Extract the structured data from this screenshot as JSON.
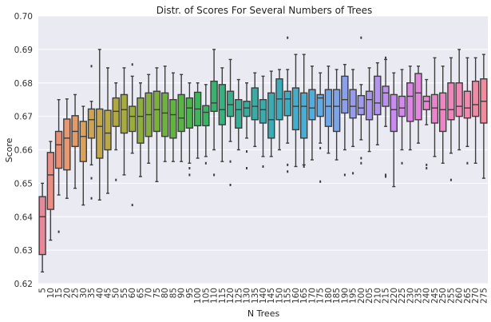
{
  "chart_data": {
    "type": "box",
    "title": "Distr. of Scores For Several Numbers of Trees",
    "xlabel": "N Trees",
    "ylabel": "Score",
    "ylim": [
      0.62,
      0.7
    ],
    "yticks": [
      "0.62",
      "0.63",
      "0.64",
      "0.65",
      "0.66",
      "0.67",
      "0.68",
      "0.69",
      "0.70"
    ],
    "grid": true,
    "categories": [
      "5",
      "10",
      "15",
      "20",
      "25",
      "30",
      "35",
      "40",
      "45",
      "50",
      "55",
      "60",
      "65",
      "70",
      "75",
      "80",
      "85",
      "90",
      "95",
      "100",
      "105",
      "110",
      "115",
      "120",
      "125",
      "130",
      "135",
      "140",
      "145",
      "150",
      "155",
      "160",
      "165",
      "170",
      "175",
      "180",
      "185",
      "190",
      "195",
      "200",
      "205",
      "210",
      "215",
      "220",
      "225",
      "230",
      "235",
      "240",
      "245",
      "250",
      "255",
      "260",
      "265",
      "270",
      "275"
    ],
    "colors": [
      "#e8899b",
      "#e98e84",
      "#e88f74",
      "#e89870",
      "#e39a66",
      "#d9a159",
      "#cfa450",
      "#c4a848",
      "#b8a846",
      "#b0a943",
      "#a6ac40",
      "#99ad3d",
      "#8fae3e",
      "#85b03e",
      "#7bb03d",
      "#6fb23f",
      "#62b43f",
      "#56b543",
      "#4ab64b",
      "#3eb55a",
      "#3ab365",
      "#39b270",
      "#37b17d",
      "#37b08a",
      "#38af94",
      "#39ad9c",
      "#3aaca4",
      "#3bacab",
      "#3bacb2",
      "#3cacba",
      "#3eadc2",
      "#42aecb",
      "#48aed6",
      "#52addc",
      "#5fabe3",
      "#6ea7e7",
      "#7ea4e8",
      "#8aa0eb",
      "#959cee",
      "#a099ef",
      "#aa96ef",
      "#b493ef",
      "#bd8fef",
      "#c88cee",
      "#d38aea",
      "#dc87e4",
      "#e486dd",
      "#e985d5",
      "#ec84cd",
      "#ee84c4",
      "#ef86bc",
      "#ef88b4",
      "#ef8aac",
      "#ef8ba4",
      "#ef8d9c"
    ],
    "boxes": [
      {
        "q1": 0.6287,
        "median": 0.64,
        "q3": 0.646,
        "whislo": 0.6235,
        "whishi": 0.65,
        "fliers": []
      },
      {
        "q1": 0.6422,
        "median": 0.6525,
        "q3": 0.6592,
        "whislo": 0.633,
        "whishi": 0.6625,
        "fliers": []
      },
      {
        "q1": 0.6545,
        "median": 0.6615,
        "q3": 0.6655,
        "whislo": 0.6465,
        "whishi": 0.675,
        "fliers": [
          0.6355
        ]
      },
      {
        "q1": 0.654,
        "median": 0.6635,
        "q3": 0.6692,
        "whislo": 0.6455,
        "whishi": 0.6752,
        "fliers": []
      },
      {
        "q1": 0.661,
        "median": 0.6655,
        "q3": 0.6702,
        "whislo": 0.6485,
        "whishi": 0.6765,
        "fliers": []
      },
      {
        "q1": 0.6565,
        "median": 0.664,
        "q3": 0.6685,
        "whislo": 0.6435,
        "whishi": 0.673,
        "fliers": []
      },
      {
        "q1": 0.6635,
        "median": 0.669,
        "q3": 0.6722,
        "whislo": 0.6555,
        "whishi": 0.6745,
        "fliers": [
          0.685,
          0.6515,
          0.6455
        ]
      },
      {
        "q1": 0.6575,
        "median": 0.667,
        "q3": 0.6722,
        "whislo": 0.645,
        "whishi": 0.69,
        "fliers": []
      },
      {
        "q1": 0.66,
        "median": 0.665,
        "q3": 0.6718,
        "whislo": 0.647,
        "whishi": 0.6845,
        "fliers": []
      },
      {
        "q1": 0.667,
        "median": 0.6715,
        "q3": 0.6755,
        "whislo": 0.66,
        "whishi": 0.68,
        "fliers": [
          0.651
        ]
      },
      {
        "q1": 0.665,
        "median": 0.672,
        "q3": 0.6765,
        "whislo": 0.6525,
        "whishi": 0.6845,
        "fliers": []
      },
      {
        "q1": 0.6655,
        "median": 0.67,
        "q3": 0.673,
        "whislo": 0.659,
        "whishi": 0.682,
        "fliers": [
          0.6855,
          0.6435
        ]
      },
      {
        "q1": 0.662,
        "median": 0.67,
        "q3": 0.6755,
        "whislo": 0.652,
        "whishi": 0.68,
        "fliers": []
      },
      {
        "q1": 0.664,
        "median": 0.6705,
        "q3": 0.677,
        "whislo": 0.656,
        "whishi": 0.6825,
        "fliers": []
      },
      {
        "q1": 0.6655,
        "median": 0.672,
        "q3": 0.6775,
        "whislo": 0.6505,
        "whishi": 0.6845,
        "fliers": []
      },
      {
        "q1": 0.664,
        "median": 0.671,
        "q3": 0.677,
        "whislo": 0.6565,
        "whishi": 0.685,
        "fliers": []
      },
      {
        "q1": 0.6635,
        "median": 0.6705,
        "q3": 0.675,
        "whislo": 0.6565,
        "whishi": 0.683,
        "fliers": []
      },
      {
        "q1": 0.6655,
        "median": 0.6695,
        "q3": 0.6765,
        "whislo": 0.6565,
        "whishi": 0.6825,
        "fliers": []
      },
      {
        "q1": 0.6665,
        "median": 0.6725,
        "q3": 0.6755,
        "whislo": 0.656,
        "whishi": 0.68,
        "fliers": [
          0.6545,
          0.6525
        ]
      },
      {
        "q1": 0.6672,
        "median": 0.6722,
        "q3": 0.6772,
        "whislo": 0.6575,
        "whishi": 0.68,
        "fliers": []
      },
      {
        "q1": 0.6672,
        "median": 0.6712,
        "q3": 0.6732,
        "whislo": 0.658,
        "whishi": 0.6795,
        "fliers": [
          0.656
        ]
      },
      {
        "q1": 0.6715,
        "median": 0.674,
        "q3": 0.6805,
        "whislo": 0.66,
        "whishi": 0.69,
        "fliers": [
          0.6525
        ]
      },
      {
        "q1": 0.6675,
        "median": 0.672,
        "q3": 0.6795,
        "whislo": 0.6565,
        "whishi": 0.6845,
        "fliers": []
      },
      {
        "q1": 0.67,
        "median": 0.6735,
        "q3": 0.6775,
        "whislo": 0.6625,
        "whishi": 0.687,
        "fliers": [
          0.6565,
          0.6495
        ]
      },
      {
        "q1": 0.6665,
        "median": 0.672,
        "q3": 0.675,
        "whislo": 0.66,
        "whishi": 0.681,
        "fliers": []
      },
      {
        "q1": 0.67,
        "median": 0.6725,
        "q3": 0.6745,
        "whislo": 0.6635,
        "whishi": 0.68,
        "fliers": [
          0.6595,
          0.6545
        ]
      },
      {
        "q1": 0.669,
        "median": 0.673,
        "q3": 0.6785,
        "whislo": 0.661,
        "whishi": 0.683,
        "fliers": []
      },
      {
        "q1": 0.668,
        "median": 0.672,
        "q3": 0.675,
        "whislo": 0.658,
        "whishi": 0.682,
        "fliers": [
          0.655
        ]
      },
      {
        "q1": 0.6635,
        "median": 0.669,
        "q3": 0.677,
        "whislo": 0.658,
        "whishi": 0.6835,
        "fliers": []
      },
      {
        "q1": 0.669,
        "median": 0.6752,
        "q3": 0.6812,
        "whislo": 0.66,
        "whishi": 0.684,
        "fliers": []
      },
      {
        "q1": 0.6702,
        "median": 0.6752,
        "q3": 0.6775,
        "whislo": 0.662,
        "whishi": 0.684,
        "fliers": [
          0.6935,
          0.6555,
          0.6535
        ]
      },
      {
        "q1": 0.666,
        "median": 0.673,
        "q3": 0.6785,
        "whislo": 0.655,
        "whishi": 0.6885,
        "fliers": []
      },
      {
        "q1": 0.6635,
        "median": 0.673,
        "q3": 0.677,
        "whislo": 0.6555,
        "whishi": 0.6885,
        "fliers": [
          0.655
        ]
      },
      {
        "q1": 0.669,
        "median": 0.6725,
        "q3": 0.678,
        "whislo": 0.657,
        "whishi": 0.685,
        "fliers": []
      },
      {
        "q1": 0.67,
        "median": 0.6755,
        "q3": 0.6765,
        "whislo": 0.662,
        "whishi": 0.683,
        "fliers": [
          0.6605,
          0.6505
        ]
      },
      {
        "q1": 0.667,
        "median": 0.673,
        "q3": 0.678,
        "whislo": 0.659,
        "whishi": 0.685,
        "fliers": []
      },
      {
        "q1": 0.6655,
        "median": 0.673,
        "q3": 0.678,
        "whislo": 0.657,
        "whishi": 0.684,
        "fliers": []
      },
      {
        "q1": 0.671,
        "median": 0.675,
        "q3": 0.682,
        "whislo": 0.66,
        "whishi": 0.6855,
        "fliers": [
          0.6525
        ]
      },
      {
        "q1": 0.6695,
        "median": 0.673,
        "q3": 0.678,
        "whislo": 0.661,
        "whishi": 0.684,
        "fliers": [
          0.653
        ]
      },
      {
        "q1": 0.6705,
        "median": 0.6725,
        "q3": 0.6762,
        "whislo": 0.663,
        "whishi": 0.6795,
        "fliers": [
          0.6935,
          0.6575,
          0.656
        ]
      },
      {
        "q1": 0.669,
        "median": 0.675,
        "q3": 0.6775,
        "whislo": 0.6595,
        "whishi": 0.6845,
        "fliers": []
      },
      {
        "q1": 0.6705,
        "median": 0.674,
        "q3": 0.682,
        "whislo": 0.6615,
        "whishi": 0.686,
        "fliers": []
      },
      {
        "q1": 0.673,
        "median": 0.677,
        "q3": 0.679,
        "whislo": 0.667,
        "whishi": 0.687,
        "fliers": [
          0.6875,
          0.6525,
          0.652
        ]
      },
      {
        "q1": 0.6655,
        "median": 0.672,
        "q3": 0.6765,
        "whislo": 0.649,
        "whishi": 0.683,
        "fliers": []
      },
      {
        "q1": 0.67,
        "median": 0.6725,
        "q3": 0.676,
        "whislo": 0.66,
        "whishi": 0.684,
        "fliers": [
          0.656
        ]
      },
      {
        "q1": 0.6685,
        "median": 0.676,
        "q3": 0.68,
        "whislo": 0.66,
        "whishi": 0.685,
        "fliers": []
      },
      {
        "q1": 0.669,
        "median": 0.677,
        "q3": 0.6828,
        "whislo": 0.662,
        "whishi": 0.685,
        "fliers": []
      },
      {
        "q1": 0.672,
        "median": 0.6745,
        "q3": 0.676,
        "whislo": 0.6675,
        "whishi": 0.681,
        "fliers": [
          0.6555,
          0.6545
        ]
      },
      {
        "q1": 0.668,
        "median": 0.6725,
        "q3": 0.6765,
        "whislo": 0.658,
        "whishi": 0.6875,
        "fliers": []
      },
      {
        "q1": 0.6655,
        "median": 0.672,
        "q3": 0.677,
        "whislo": 0.656,
        "whishi": 0.685,
        "fliers": []
      },
      {
        "q1": 0.669,
        "median": 0.672,
        "q3": 0.68,
        "whislo": 0.659,
        "whishi": 0.6875,
        "fliers": [
          0.651
        ]
      },
      {
        "q1": 0.67,
        "median": 0.673,
        "q3": 0.68,
        "whislo": 0.66,
        "whishi": 0.69,
        "fliers": []
      },
      {
        "q1": 0.6695,
        "median": 0.6725,
        "q3": 0.6775,
        "whislo": 0.661,
        "whishi": 0.6875,
        "fliers": [
          0.656
        ]
      },
      {
        "q1": 0.67,
        "median": 0.6735,
        "q3": 0.6805,
        "whislo": 0.656,
        "whishi": 0.6875,
        "fliers": []
      },
      {
        "q1": 0.668,
        "median": 0.6745,
        "q3": 0.6812,
        "whislo": 0.6515,
        "whishi": 0.6885,
        "fliers": []
      }
    ]
  }
}
